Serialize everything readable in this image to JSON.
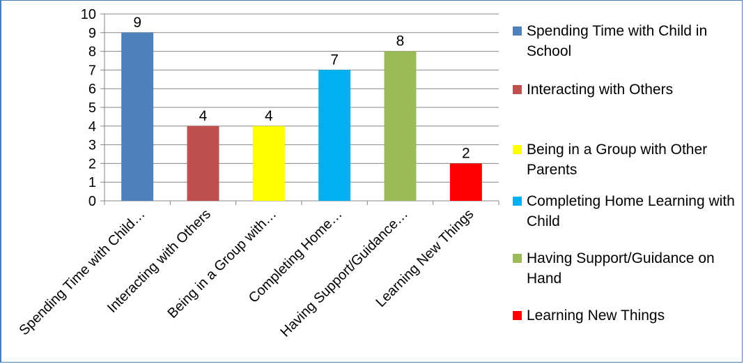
{
  "chart_data": {
    "type": "bar",
    "title": "",
    "xlabel": "",
    "ylabel": "",
    "ylim": [
      0,
      10
    ],
    "yticks": [
      0,
      1,
      2,
      3,
      4,
      5,
      6,
      7,
      8,
      9,
      10
    ],
    "grid": true,
    "legend_position": "right",
    "categories": [
      "Spending Time with Child…",
      "Interacting with Others",
      "Being in a Group with…",
      "Completing Home…",
      "Having Support/Guidance…",
      "Learning New Things"
    ],
    "values": [
      9,
      4,
      4,
      7,
      8,
      2
    ],
    "colors": [
      "#4f81bd",
      "#c0504d",
      "#ffff00",
      "#00b0f0",
      "#9bbb59",
      "#ff0000"
    ],
    "legend": [
      "Spending Time with Child in School",
      "Interacting with Others",
      "Being in a Group with Other Parents",
      "Completing Home Learning with Child",
      "Having Support/Guidance on Hand",
      "Learning New Things"
    ]
  }
}
